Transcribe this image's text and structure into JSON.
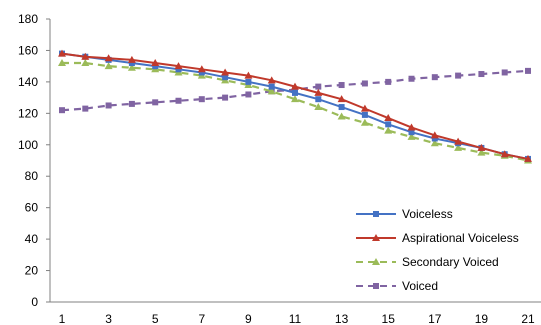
{
  "chart_data": {
    "type": "line",
    "title": "",
    "xlabel": "",
    "ylabel": "",
    "x": [
      1,
      2,
      3,
      4,
      5,
      6,
      7,
      8,
      9,
      10,
      11,
      12,
      13,
      14,
      15,
      16,
      17,
      18,
      19,
      20,
      21
    ],
    "x_ticks": [
      "1",
      "3",
      "5",
      "7",
      "9",
      "11",
      "13",
      "15",
      "17",
      "19",
      "21"
    ],
    "y_ticks": [
      "0",
      "20",
      "40",
      "60",
      "80",
      "100",
      "120",
      "140",
      "160",
      "180"
    ],
    "xlim": [
      1,
      21
    ],
    "ylim": [
      0,
      180
    ],
    "grid": false,
    "legend_position": "bottom-right",
    "series": [
      {
        "name": "Voiceless",
        "color": "#4472C4",
        "marker": "square",
        "dash": false,
        "values": [
          158,
          156,
          154,
          152,
          150,
          148,
          146,
          143,
          140,
          137,
          133,
          129,
          124,
          119,
          113,
          108,
          104,
          101,
          98,
          94,
          91
        ]
      },
      {
        "name": "Aspirational Voiceless",
        "color": "#C0392B",
        "marker": "triangle",
        "dash": false,
        "values": [
          158,
          156,
          155,
          154,
          152,
          150,
          148,
          146,
          144,
          141,
          137,
          133,
          129,
          123,
          117,
          111,
          106,
          102,
          98,
          94,
          91
        ]
      },
      {
        "name": "Secondary Voiced",
        "color": "#9BBB59",
        "marker": "triangle",
        "dash": true,
        "values": [
          152,
          152,
          150,
          149,
          148,
          146,
          144,
          141,
          138,
          134,
          129,
          124,
          118,
          114,
          109,
          105,
          101,
          98,
          95,
          93,
          90
        ]
      },
      {
        "name": "Voiced",
        "color": "#8064A2",
        "marker": "square",
        "dash": true,
        "values": [
          122,
          123,
          125,
          126,
          127,
          128,
          129,
          130,
          132,
          134,
          135,
          137,
          138,
          139,
          140,
          142,
          143,
          144,
          145,
          146,
          147
        ]
      }
    ]
  }
}
